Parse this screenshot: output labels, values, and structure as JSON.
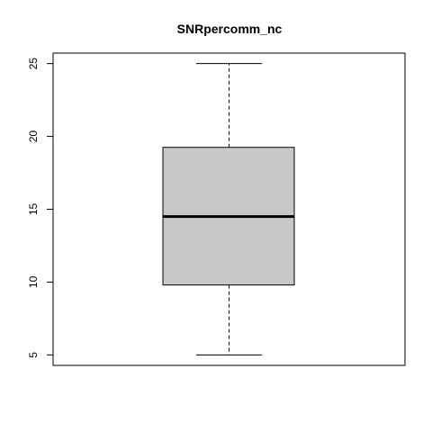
{
  "chart_data": {
    "type": "boxplot",
    "title": "SNRpercomm_nc",
    "xlabel": "",
    "ylabel": "",
    "ylim": [
      4.28,
      25.72
    ],
    "yticks": [
      5,
      10,
      15,
      20,
      25
    ],
    "box": {
      "min": 5.0,
      "q1": 9.8,
      "median": 14.5,
      "q3": 19.25,
      "max": 25.0
    },
    "box_fill": "#c8c8c8"
  }
}
